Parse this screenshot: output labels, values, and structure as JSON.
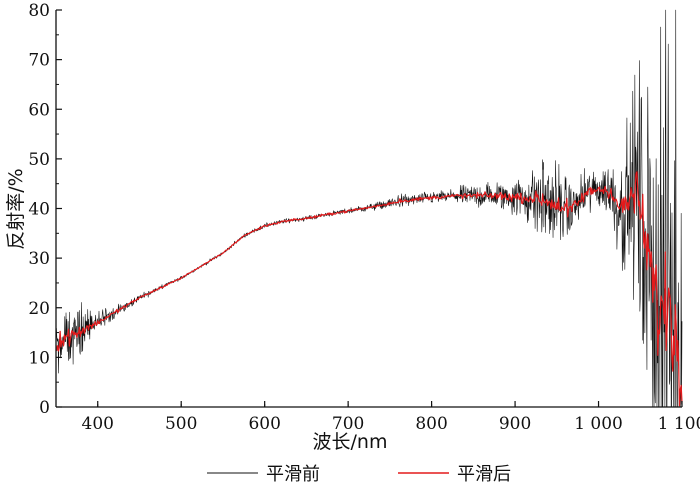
{
  "chart_data": {
    "type": "line",
    "xlabel": "波长/nm",
    "ylabel": "反射率/%",
    "xlim": [
      350,
      1100
    ],
    "ylim": [
      0,
      80
    ],
    "x_ticks": [
      400,
      500,
      600,
      700,
      800,
      900,
      1000,
      1100
    ],
    "x_tick_labels": [
      "400",
      "500",
      "600",
      "700",
      "800",
      "900",
      "1 000",
      "1 100"
    ],
    "y_ticks": [
      0,
      10,
      20,
      30,
      40,
      50,
      60,
      70,
      80
    ],
    "y_tick_labels": [
      "0",
      "10",
      "20",
      "30",
      "40",
      "50",
      "60",
      "70",
      "80"
    ],
    "grid": false,
    "legend_position": "bottom",
    "x": [
      350,
      375,
      400,
      425,
      450,
      475,
      500,
      525,
      550,
      575,
      600,
      625,
      650,
      675,
      700,
      725,
      750,
      760,
      775,
      800,
      825,
      850,
      875,
      900,
      925,
      935,
      950,
      965,
      975,
      985,
      1000,
      1015,
      1025,
      1035,
      1045,
      1055,
      1065,
      1075,
      1085,
      1095,
      1100
    ],
    "series": [
      {
        "name": "平滑前",
        "color": "#111111",
        "values": [
          13,
          15,
          17,
          19.5,
          22,
          24,
          26,
          28.5,
          31,
          34.5,
          36.5,
          37.5,
          38,
          38.8,
          39.5,
          40.2,
          41,
          41.5,
          41.7,
          42.2,
          42.5,
          42.6,
          42.6,
          42.3,
          42,
          41.6,
          40.8,
          39.5,
          41,
          43,
          44,
          43.5,
          40,
          41,
          44,
          35,
          25,
          18,
          22,
          10,
          5
        ],
        "noise": [
          6,
          4.5,
          2,
          0.8,
          0.6,
          0.4,
          0.3,
          0.3,
          0.3,
          0.3,
          0.4,
          0.4,
          0.4,
          0.4,
          0.5,
          0.6,
          0.8,
          1.2,
          1,
          1,
          1.3,
          2,
          2.5,
          3,
          6,
          9,
          7,
          5,
          3.5,
          4,
          4,
          5,
          9,
          13,
          19,
          28,
          40,
          50,
          50,
          50,
          50
        ]
      },
      {
        "name": "平滑后",
        "color": "#e31a1c",
        "values": [
          13,
          15,
          17,
          19.5,
          22,
          24,
          26,
          28.5,
          31,
          34.5,
          36.5,
          37.5,
          38,
          38.8,
          39.5,
          40.2,
          41,
          41.5,
          41.7,
          42.2,
          42.5,
          42.6,
          42.6,
          42.3,
          42,
          41.6,
          40.8,
          39.5,
          41,
          43,
          44,
          43.5,
          40,
          41,
          44,
          35,
          25,
          18,
          22,
          10,
          5
        ],
        "noise": [
          1.8,
          1.2,
          0.5,
          0.3,
          0.2,
          0.2,
          0.1,
          0.1,
          0.1,
          0.1,
          0.2,
          0.2,
          0.2,
          0.2,
          0.2,
          0.2,
          0.3,
          0.4,
          0.3,
          0.3,
          0.4,
          0.5,
          0.6,
          0.8,
          1.2,
          1.5,
          1.8,
          1.6,
          1,
          1,
          1.2,
          1.3,
          1.8,
          2.5,
          3.5,
          5,
          7,
          9,
          9,
          9,
          9
        ]
      }
    ]
  }
}
